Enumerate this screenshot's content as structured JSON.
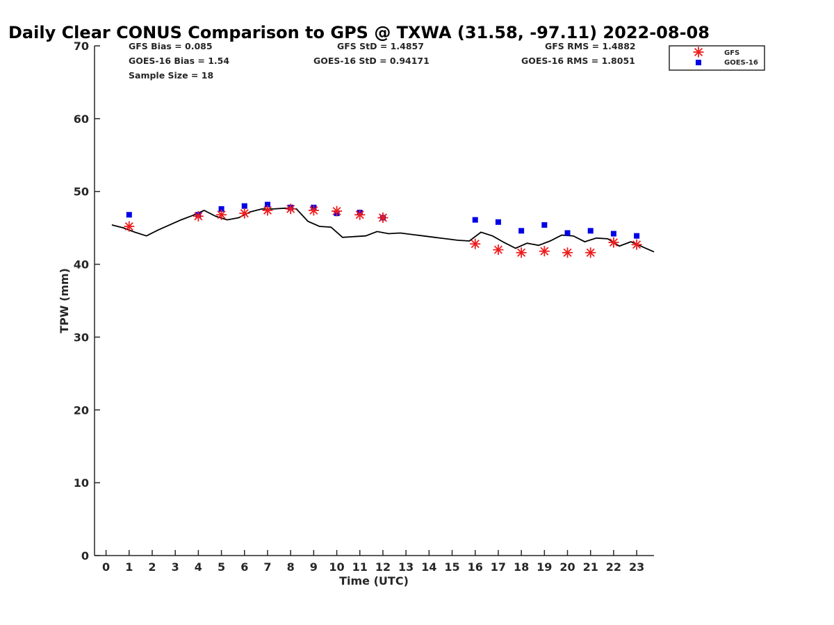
{
  "chart_data": {
    "type": "line",
    "title": "Daily Clear CONUS Comparison to GPS @ TXWA (31.58, -97.11) 2022-08-08",
    "xlabel": "Time (UTC)",
    "ylabel": "TPW (mm)",
    "xlim": [
      -0.5,
      23.75
    ],
    "ylim": [
      0,
      70
    ],
    "xticks": [
      0,
      1,
      2,
      3,
      4,
      5,
      6,
      7,
      8,
      9,
      10,
      11,
      12,
      13,
      14,
      15,
      16,
      17,
      18,
      19,
      20,
      21,
      22,
      23
    ],
    "yticks": [
      0,
      10,
      20,
      30,
      40,
      50,
      60,
      70
    ],
    "grid": false,
    "legend_position": "top-right",
    "stats": {
      "gfs_bias": "GFS Bias = 0.085",
      "goes_bias": "GOES-16 Bias = 1.54",
      "sample_size": "Sample Size = 18",
      "gfs_std": "GFS StD = 1.4857",
      "goes_std": "GOES-16 StD = 0.94171",
      "gfs_rms": "GFS RMS = 1.4882",
      "goes_rms": "GOES-16 RMS = 1.8051"
    },
    "series": [
      {
        "kind": "gps-line",
        "color": "#000000",
        "x": [
          0.25,
          0.75,
          1.25,
          1.75,
          2.25,
          2.75,
          3.25,
          3.75,
          4.25,
          4.75,
          5.25,
          5.75,
          6.25,
          6.75,
          7.25,
          7.75,
          8.25,
          8.75,
          9.25,
          9.75,
          10.25,
          10.75,
          11.25,
          11.75,
          12.25,
          12.75,
          13.25,
          13.75,
          14.25,
          14.75,
          15.25,
          15.75,
          16.25,
          16.75,
          17.25,
          17.75,
          18.25,
          18.75,
          19.25,
          19.75,
          20.25,
          20.75,
          21.25,
          21.75,
          22.25,
          22.75,
          23.25,
          23.75
        ],
        "y": [
          45.4,
          45.0,
          44.4,
          43.9,
          44.7,
          45.4,
          46.1,
          46.7,
          47.4,
          46.6,
          46.1,
          46.4,
          47.2,
          47.6,
          47.6,
          47.7,
          47.6,
          45.9,
          45.2,
          45.1,
          43.7,
          43.8,
          43.9,
          44.5,
          44.2,
          44.3,
          44.1,
          43.9,
          43.7,
          43.5,
          43.3,
          43.2,
          44.4,
          43.9,
          43.0,
          42.2,
          42.9,
          42.6,
          43.2,
          44.0,
          43.9,
          43.1,
          43.6,
          43.5,
          42.5,
          43.1,
          42.4,
          41.7
        ]
      },
      {
        "name": "GFS",
        "marker": "asterisk",
        "color": "#ee1c1c",
        "x": [
          1,
          4,
          5,
          6,
          7,
          8,
          9,
          10,
          11,
          12,
          16,
          17,
          18,
          19,
          20,
          21,
          22,
          23
        ],
        "y": [
          45.2,
          46.6,
          46.8,
          47.0,
          47.4,
          47.6,
          47.4,
          47.3,
          46.8,
          46.4,
          42.8,
          42.0,
          41.6,
          41.8,
          41.6,
          41.6,
          43.0,
          42.7
        ]
      },
      {
        "name": "GOES-16",
        "marker": "square",
        "color": "#0000e6",
        "x": [
          1,
          4,
          5,
          6,
          7,
          8,
          9,
          10,
          11,
          12,
          16,
          17,
          18,
          19,
          20,
          21,
          22,
          23
        ],
        "y": [
          46.8,
          46.8,
          47.6,
          48.0,
          48.2,
          47.8,
          47.8,
          47.0,
          47.1,
          46.4,
          46.1,
          45.8,
          44.6,
          45.4,
          44.3,
          44.6,
          44.2,
          43.9
        ]
      }
    ]
  }
}
